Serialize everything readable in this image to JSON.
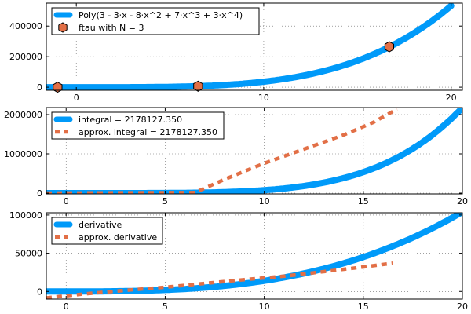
{
  "colors": {
    "blue": "#009af9",
    "orange": "#e26f46",
    "marker_edge": "#000000",
    "grid": "#000000",
    "axis": "#000000",
    "background": "#ffffff"
  },
  "chart_data": [
    {
      "type": "line",
      "title": "",
      "xlabel": "",
      "ylabel": "",
      "xlim": [
        -1.6,
        20.6
      ],
      "ylim": [
        -20000,
        550000
      ],
      "xticks": [
        0,
        10,
        20
      ],
      "yticks": [
        0,
        200000,
        400000
      ],
      "grid": true,
      "legend_position": "top-left",
      "series": [
        {
          "name": "Poly(3 - 3⋅x - 8⋅x^2 + 7⋅x^3 + 3⋅x^4)",
          "kind": "curve",
          "poly_coeffs": [
            3,
            -3,
            -8,
            7,
            3
          ],
          "x_range": [
            -1.6,
            20.0
          ],
          "color": "blue",
          "style": "solid-thick"
        },
        {
          "name": "ftau with N = 3",
          "kind": "markers",
          "marker": "hexagon",
          "color": "orange",
          "points": [
            {
              "x": -1.0,
              "y": 0
            },
            {
              "x": 6.5,
              "y": 6500
            },
            {
              "x": 16.7,
              "y": 265000
            }
          ]
        }
      ]
    },
    {
      "type": "line",
      "title": "",
      "xlabel": "",
      "ylabel": "",
      "xlim": [
        -1,
        20
      ],
      "ylim": [
        -20000,
        2180000
      ],
      "xticks": [
        0,
        5,
        10,
        15,
        20
      ],
      "yticks": [
        0,
        1000000,
        2000000
      ],
      "grid": true,
      "legend_position": "top-left",
      "series": [
        {
          "name": "integral = 2178127.350",
          "kind": "curve",
          "x_range": [
            -1,
            20
          ],
          "color": "blue",
          "style": "solid-thick"
        },
        {
          "name": "approx. integral = 2178127.350",
          "kind": "curve",
          "color": "orange",
          "style": "dashed",
          "points": [
            {
              "x": -1.0,
              "y": 0
            },
            {
              "x": 6.5,
              "y": 15000
            },
            {
              "x": 8.0,
              "y": 350000
            },
            {
              "x": 10.0,
              "y": 760000
            },
            {
              "x": 12.0,
              "y": 1120000
            },
            {
              "x": 14.0,
              "y": 1480000
            },
            {
              "x": 15.5,
              "y": 1800000
            },
            {
              "x": 16.7,
              "y": 2140000
            }
          ]
        }
      ]
    },
    {
      "type": "line",
      "title": "",
      "xlabel": "",
      "ylabel": "",
      "xlim": [
        -1,
        20
      ],
      "ylim": [
        -10000,
        103000
      ],
      "xticks": [
        0,
        5,
        10,
        15,
        20
      ],
      "yticks": [
        0,
        50000,
        100000
      ],
      "grid": true,
      "legend_position": "top-left",
      "series": [
        {
          "name": "derivative",
          "kind": "curve",
          "x_range": [
            -1,
            20
          ],
          "color": "blue",
          "style": "solid-thick"
        },
        {
          "name": "approx. derivative",
          "kind": "curve",
          "color": "orange",
          "style": "dashed",
          "points": [
            {
              "x": -1.0,
              "y": -8500
            },
            {
              "x": 1.0,
              "y": -3000
            },
            {
              "x": 3.0,
              "y": 1500
            },
            {
              "x": 5.0,
              "y": 5500
            },
            {
              "x": 7.0,
              "y": 10500
            },
            {
              "x": 9.0,
              "y": 15500
            },
            {
              "x": 11.0,
              "y": 20000
            },
            {
              "x": 13.0,
              "y": 26000
            },
            {
              "x": 15.0,
              "y": 32000
            },
            {
              "x": 16.5,
              "y": 37000
            }
          ]
        }
      ]
    }
  ]
}
